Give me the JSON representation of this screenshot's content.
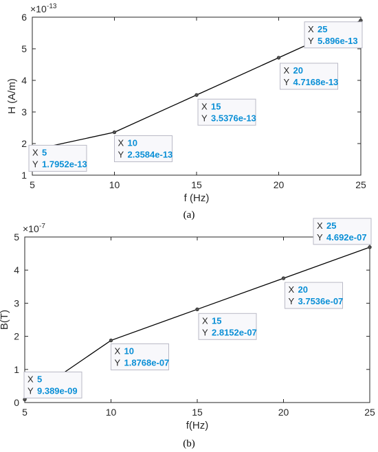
{
  "colors": {
    "line": "#000000",
    "axis": "#262626",
    "tooltip_value": "#0a8fd6",
    "tooltip_bg": "#f8f8fb",
    "tooltip_border": "#b9b9c6"
  },
  "chart_data": [
    {
      "type": "line",
      "caption": "(a)",
      "xlabel": "f (Hz)",
      "ylabel": "H (A/m)",
      "exponent": "-13",
      "xlim": [
        5,
        25
      ],
      "ylim": [
        1,
        6
      ],
      "xticks": [
        "5",
        "10",
        "15",
        "20",
        "25"
      ],
      "yticks": [
        "1",
        "2",
        "3",
        "4",
        "5",
        "6"
      ],
      "grid": false,
      "x": [
        5,
        10,
        15,
        20,
        25
      ],
      "y": [
        1.7952,
        2.3584,
        3.5376,
        4.7168,
        5.896
      ],
      "datatips": [
        {
          "x_key": "X",
          "x_text": "5",
          "y_key": "Y",
          "y_text": "1.7952e-13"
        },
        {
          "x_key": "X",
          "x_text": "10",
          "y_key": "Y",
          "y_text": "2.3584e-13"
        },
        {
          "x_key": "X",
          "x_text": "15",
          "y_key": "Y",
          "y_text": "3.5376e-13"
        },
        {
          "x_key": "X",
          "x_text": "20",
          "y_key": "Y",
          "y_text": "4.7168e-13"
        },
        {
          "x_key": "X",
          "x_text": "25",
          "y_key": "Y",
          "y_text": "5.896e-13"
        }
      ]
    },
    {
      "type": "line",
      "caption": "(b)",
      "xlabel": "f(Hz)",
      "ylabel": "B(T)",
      "exponent": "-7",
      "xlim": [
        5,
        25
      ],
      "ylim": [
        0,
        5
      ],
      "xticks": [
        "5",
        "10",
        "15",
        "20",
        "25"
      ],
      "yticks": [
        "0",
        "1",
        "2",
        "3",
        "4",
        "5"
      ],
      "grid": false,
      "x": [
        5,
        10,
        15,
        20,
        25
      ],
      "y": [
        0.09389,
        1.8768,
        2.8152,
        3.7536,
        4.692
      ],
      "datatips": [
        {
          "x_key": "X",
          "x_text": "5",
          "y_key": "Y",
          "y_text": "9.389e-09"
        },
        {
          "x_key": "X",
          "x_text": "10",
          "y_key": "Y",
          "y_text": "1.8768e-07"
        },
        {
          "x_key": "X",
          "x_text": "15",
          "y_key": "Y",
          "y_text": "2.8152e-07"
        },
        {
          "x_key": "X",
          "x_text": "20",
          "y_key": "Y",
          "y_text": "3.7536e-07"
        },
        {
          "x_key": "X",
          "x_text": "25",
          "y_key": "Y",
          "y_text": "4.692e-07"
        }
      ]
    }
  ]
}
